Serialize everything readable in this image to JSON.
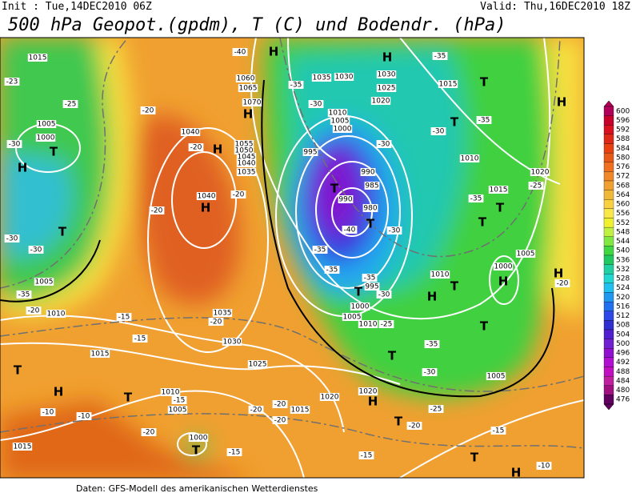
{
  "header": {
    "init": "Init : Tue,14DEC2010 06Z",
    "valid": "Valid: Thu,16DEC2010 18Z",
    "title": "500 hPa Geopot.(gpdm), T (C) und Bodendr. (hPa)"
  },
  "footer": "Daten: GFS-Modell des amerikanischen Wetterdienstes",
  "colorbar": {
    "labels": [
      600,
      596,
      592,
      588,
      584,
      580,
      576,
      572,
      568,
      564,
      560,
      556,
      552,
      548,
      544,
      540,
      536,
      532,
      528,
      524,
      520,
      516,
      512,
      508,
      504,
      500,
      496,
      492,
      488,
      484,
      480,
      476
    ],
    "colors": [
      "#b0005a",
      "#c8002c",
      "#d81020",
      "#e02818",
      "#e84010",
      "#e85818",
      "#f07020",
      "#f08828",
      "#f0a030",
      "#f0b838",
      "#f8d040",
      "#f8e848",
      "#eef030",
      "#c0f040",
      "#80e840",
      "#40d840",
      "#20c860",
      "#20d0a0",
      "#20d8d0",
      "#20c0f0",
      "#2098f0",
      "#2070f0",
      "#3048e8",
      "#3030d0",
      "#5020d0",
      "#7020d0",
      "#9010d0",
      "#b010d0",
      "#c010c0",
      "#c020a0",
      "#a01080",
      "#600060"
    ]
  },
  "map_labels": [
    "1015",
    "-23",
    "-25",
    "1005",
    "1000",
    "-30",
    "-30",
    "-30",
    "1005",
    "-35",
    "1010",
    "-20",
    "1040",
    "-20",
    "1040",
    "-20",
    "-20",
    "-40",
    "1060",
    "1065",
    "1070",
    "1055",
    "1050",
    "1045",
    "1040",
    "1035",
    "-35",
    "1035",
    "1030",
    "-30",
    "1010",
    "1005",
    "1000",
    "1030",
    "1025",
    "1020",
    "-35",
    "1015",
    "-35",
    "-30",
    "-30",
    "995",
    "990",
    "985",
    "990",
    "980",
    "-40",
    "-30",
    "1010",
    "1020",
    "-25",
    "1015",
    "-35",
    "1005",
    "1000",
    "-20",
    "-35",
    "-35",
    "-35",
    "995",
    "-30",
    "1000",
    "1005",
    "1010",
    "-25",
    "1010",
    "-35",
    "-30",
    "1005",
    "1020",
    "-25",
    "-20",
    "-15",
    "-10",
    "1035",
    "-20",
    "1030",
    "-15",
    "-15",
    "1015",
    "1025",
    "-20",
    "-20",
    "-20",
    "1015",
    "1020",
    "1010",
    "-15",
    "1005",
    "-20",
    "1000",
    "-15",
    "-15",
    "-10",
    "-10",
    "1015",
    "-20"
  ],
  "centers": [
    "T",
    "H",
    "T",
    "H",
    "H",
    "H",
    "H",
    "H",
    "T",
    "H",
    "T",
    "T",
    "T",
    "T",
    "T",
    "H",
    "H",
    "T",
    "T",
    "H",
    "T",
    "T",
    "H",
    "T",
    "T",
    "H",
    "T",
    "T",
    "T",
    "H"
  ]
}
